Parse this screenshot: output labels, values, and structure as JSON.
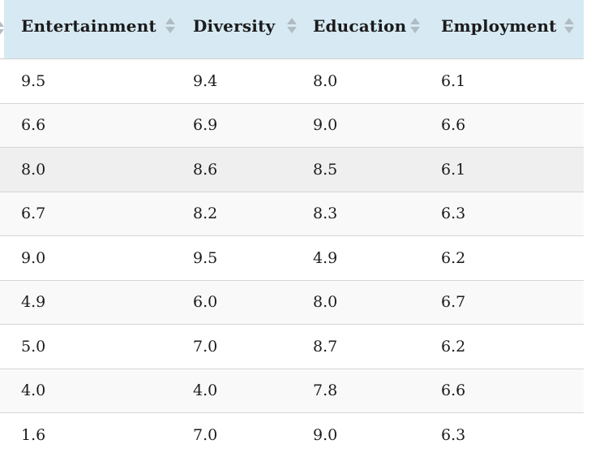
{
  "colors": {
    "header_bg": "#d7eaf3",
    "header_border": "#cfcfcf",
    "border": "#d6d6d6",
    "stripe_bg": "#f9f9f9",
    "hover_bg": "#efefef",
    "row_bg": "#ffffff",
    "text": "#1b1b1b",
    "arrow": "#b0bcc3"
  },
  "table": {
    "columns": [
      {
        "label": "Entertainment",
        "sort_icon": "sort-both-icon"
      },
      {
        "label": "Diversity",
        "sort_icon": "sort-both-icon"
      },
      {
        "label": "Education",
        "sort_icon": "sort-both-icon"
      },
      {
        "label": "Employment",
        "sort_icon": "sort-both-icon"
      }
    ],
    "rows": [
      [
        "9.5",
        "9.4",
        "8.0",
        "6.1"
      ],
      [
        "6.6",
        "6.9",
        "9.0",
        "6.6"
      ],
      [
        "8.0",
        "8.6",
        "8.5",
        "6.1"
      ],
      [
        "6.7",
        "8.2",
        "8.3",
        "6.3"
      ],
      [
        "9.0",
        "9.5",
        "4.9",
        "6.2"
      ],
      [
        "4.9",
        "6.0",
        "8.0",
        "6.7"
      ],
      [
        "5.0",
        "7.0",
        "8.7",
        "6.2"
      ],
      [
        "4.0",
        "4.0",
        "7.8",
        "6.6"
      ],
      [
        "1.6",
        "7.0",
        "9.0",
        "6.3"
      ]
    ],
    "highlighted_row_index": 2
  }
}
